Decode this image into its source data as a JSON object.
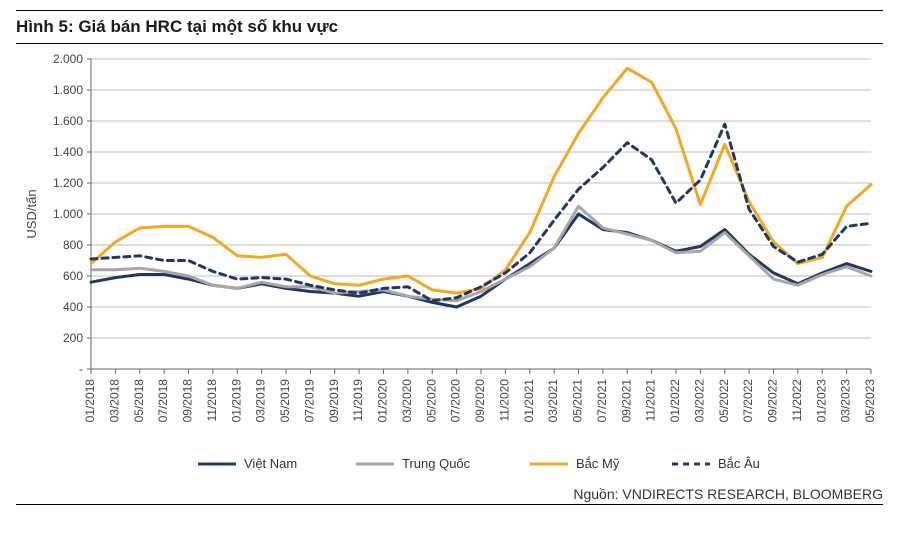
{
  "title": "Hình 5: Giá bán HRC tại một số khu vực",
  "source": "Nguồn: VNDIRECTS RESEARCH, BLOOMBERG",
  "chart": {
    "type": "line",
    "y_axis_label": "USD/tấn",
    "label_fontsize": 13,
    "tick_fontsize": 12,
    "background_color": "#ffffff",
    "grid_color": "#bfbfbf",
    "axis_color": "#666666",
    "ylim": [
      0,
      2000
    ],
    "ytick_step": 200,
    "y_ticks": [
      0,
      200,
      400,
      600,
      800,
      1000,
      1200,
      1400,
      1600,
      1800,
      2000
    ],
    "y_tick_labels": [
      "-",
      "200",
      "400",
      "600",
      "800",
      "1.000",
      "1.200",
      "1.400",
      "1.600",
      "1.800",
      "2.000"
    ],
    "x_categories": [
      "01/2018",
      "03/2018",
      "05/2018",
      "07/2018",
      "09/2018",
      "11/2018",
      "01/2019",
      "03/2019",
      "05/2019",
      "07/2019",
      "09/2019",
      "11/2019",
      "01/2020",
      "03/2020",
      "05/2020",
      "07/2020",
      "09/2020",
      "11/2020",
      "01/2021",
      "03/2021",
      "05/2021",
      "07/2021",
      "09/2021",
      "11/2021",
      "01/2022",
      "03/2022",
      "05/2022",
      "07/2022",
      "09/2022",
      "11/2022",
      "01/2023",
      "03/2023",
      "05/2023"
    ],
    "legend": {
      "position": "bottom",
      "items": [
        {
          "key": "vn",
          "label": "Việt Nam",
          "color": "#203864",
          "dash": "none",
          "width": 3
        },
        {
          "key": "cn",
          "label": "Trung Quốc",
          "color": "#a6a6a6",
          "dash": "none",
          "width": 3
        },
        {
          "key": "na",
          "label": "Bắc Mỹ",
          "color": "#f4a626",
          "dash": "none",
          "width": 3
        },
        {
          "key": "eu",
          "label": "Bắc Âu",
          "color": "#203864",
          "dash": "6,5",
          "width": 3
        }
      ]
    },
    "series": {
      "vn": [
        560,
        590,
        610,
        610,
        580,
        540,
        520,
        550,
        520,
        500,
        490,
        470,
        500,
        470,
        430,
        400,
        470,
        580,
        680,
        780,
        1000,
        900,
        880,
        830,
        760,
        790,
        900,
        740,
        620,
        550,
        620,
        680,
        630
      ],
      "cn": [
        640,
        640,
        650,
        630,
        600,
        540,
        520,
        560,
        530,
        530,
        490,
        500,
        510,
        470,
        450,
        440,
        500,
        580,
        660,
        780,
        1050,
        910,
        870,
        830,
        750,
        760,
        880,
        730,
        580,
        540,
        610,
        660,
        600
      ],
      "na": [
        680,
        820,
        910,
        920,
        920,
        850,
        730,
        720,
        740,
        600,
        550,
        540,
        580,
        600,
        510,
        490,
        520,
        640,
        880,
        1240,
        1520,
        1750,
        1940,
        1850,
        1550,
        1060,
        1450,
        1080,
        820,
        680,
        720,
        1050,
        1190
      ],
      "eu": [
        710,
        720,
        730,
        700,
        700,
        630,
        580,
        590,
        580,
        540,
        510,
        490,
        520,
        530,
        440,
        460,
        530,
        620,
        750,
        960,
        1160,
        1300,
        1460,
        1350,
        1070,
        1220,
        1580,
        1030,
        790,
        690,
        740,
        920,
        940
      ]
    }
  }
}
